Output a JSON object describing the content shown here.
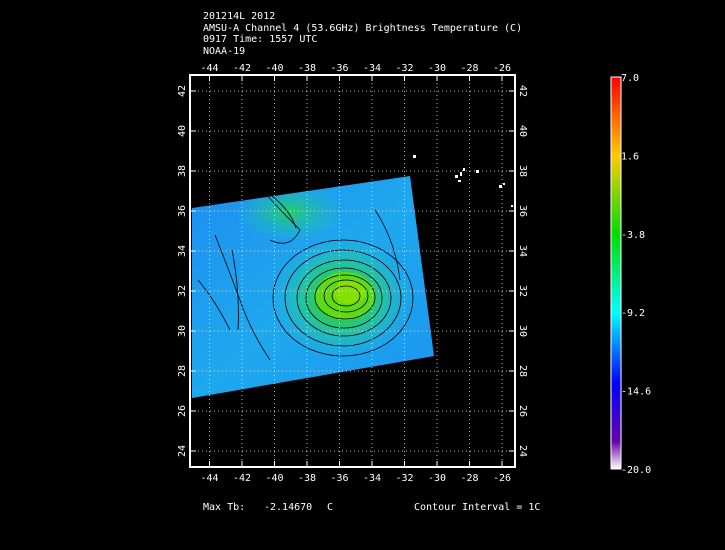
{
  "header": {
    "line1": "201214L 2012",
    "line2": "AMSU-A Channel 4 (53.6GHz) Brightness Temperature (C)",
    "line3": "0917 Time: 1557 UTC",
    "line4": "NOAA-19"
  },
  "map": {
    "lon_labels": [
      "-44",
      "-42",
      "-40",
      "-38",
      "-36",
      "-34",
      "-32",
      "-30",
      "-28",
      "-26"
    ],
    "lat_labels": [
      "24",
      "26",
      "28",
      "30",
      "32",
      "34",
      "36",
      "38",
      "40",
      "42"
    ],
    "lon_range": [
      -45.2,
      -25.2
    ],
    "lat_range": [
      23.2,
      42.8
    ],
    "grid": true,
    "storm_center_lon": -35.6,
    "storm_center_lat": 32.4
  },
  "colorbar": {
    "labels": [
      "7.0",
      "1.6",
      "-3.8",
      "-9.2",
      "-14.6",
      "-20.0"
    ],
    "range": [
      -20.0,
      7.0
    ],
    "colors": [
      "#ff0000",
      "#ffcc00",
      "#00dd00",
      "#00ffff",
      "#0000ff",
      "#6600aa",
      "#ffffff"
    ]
  },
  "footer": {
    "max_tb_label": "Max Tb:",
    "max_tb_value": "-2.14670",
    "max_tb_unit": "C",
    "contour": "Contour Interval = 1C"
  }
}
